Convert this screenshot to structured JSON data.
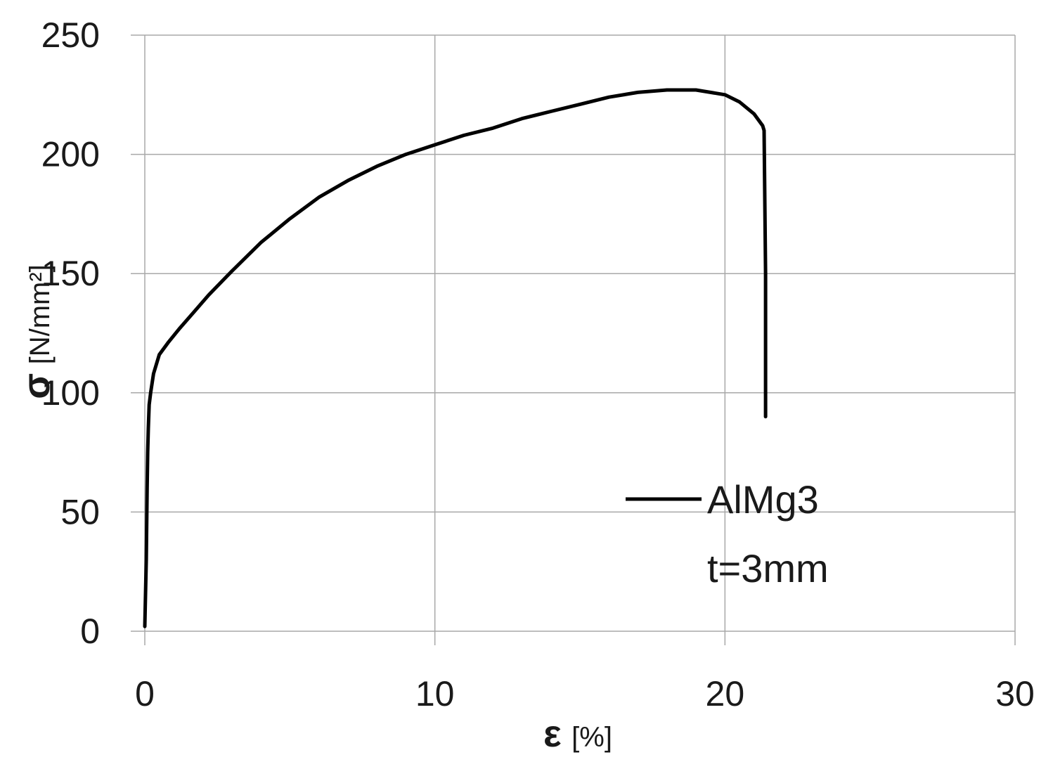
{
  "chart_data": {
    "type": "line",
    "xlabel": {
      "symbol": "ε",
      "unit": "[%]"
    },
    "ylabel": {
      "symbol": "σ",
      "unit": "[N/mm²]"
    },
    "xlim": [
      0,
      30
    ],
    "ylim": [
      0,
      250
    ],
    "x_ticks": [
      "0",
      "10",
      "20",
      "30"
    ],
    "y_ticks": [
      "0",
      "50",
      "100",
      "150",
      "200",
      "250"
    ],
    "grid": true,
    "legend": {
      "placement": "bottom-right",
      "lines": [
        "AlMg3",
        "t=3mm"
      ]
    },
    "series": [
      {
        "name": "AlMg3",
        "color": "#000000",
        "x": [
          0.0,
          0.05,
          0.08,
          0.1,
          0.12,
          0.15,
          0.2,
          0.3,
          0.5,
          0.8,
          1.2,
          1.7,
          2.2,
          3.0,
          4.0,
          5.0,
          6.0,
          7.0,
          8.0,
          9.0,
          10.0,
          11.0,
          12.0,
          13.0,
          14.0,
          15.0,
          16.0,
          17.0,
          18.0,
          18.5,
          19.0,
          19.5,
          20.0,
          20.5,
          21.0,
          21.3,
          21.35,
          21.4,
          21.4
        ],
        "y": [
          2,
          30,
          60,
          75,
          85,
          95,
          100,
          108,
          116,
          121,
          127,
          134,
          141,
          151,
          163,
          173,
          182,
          189,
          195,
          200,
          204,
          208,
          211,
          215,
          218,
          221,
          224,
          226,
          227,
          227,
          227,
          226,
          225,
          222,
          217,
          212,
          210,
          150,
          90
        ]
      }
    ]
  }
}
